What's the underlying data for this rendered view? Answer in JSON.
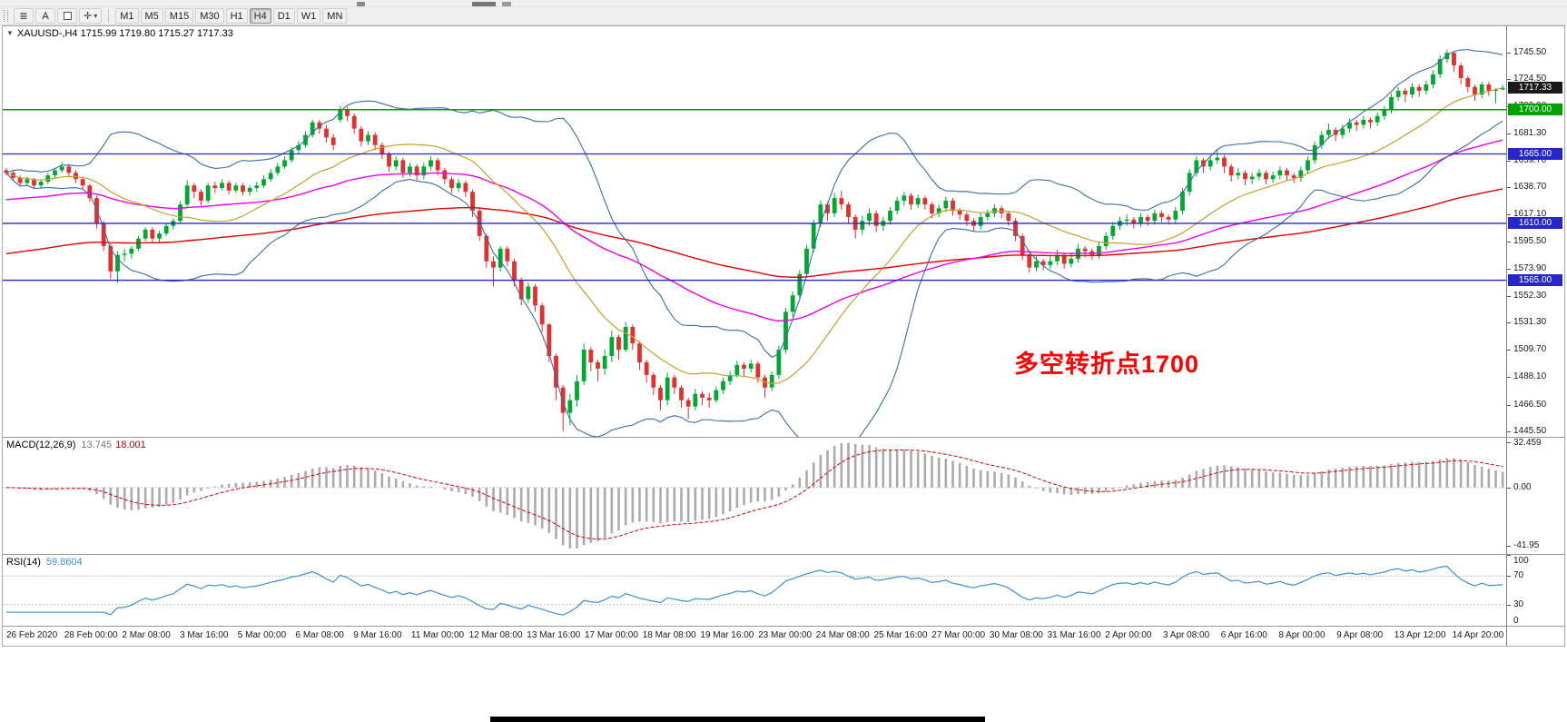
{
  "window": {
    "title": "XAUUSD-,H4 1715.99 1719.80 1715.27 1717.33",
    "icons": {
      "collapse": "▼",
      "caret": "▾",
      "crosshair": "✛",
      "grid": "≣"
    },
    "toolbar": {
      "cursor_label": "A",
      "timeframes": [
        "M1",
        "M5",
        "M15",
        "M30",
        "H1",
        "H4",
        "D1",
        "W1",
        "MN"
      ],
      "active_timeframe": "H4"
    }
  },
  "chart_data": {
    "type": "candlestick",
    "symbol": "XAUUSD-",
    "timeframe": "H4",
    "ohlc_display": {
      "open": "1715.99",
      "high": "1719.80",
      "low": "1715.27",
      "close": "1717.33"
    },
    "price_axis": {
      "ylim": [
        1441,
        1766
      ],
      "ticks": [
        1745.5,
        1724.5,
        1702.9,
        1681.3,
        1659.7,
        1638.7,
        1617.1,
        1595.5,
        1573.9,
        1552.3,
        1531.3,
        1509.7,
        1488.1,
        1466.5,
        1445.5
      ]
    },
    "time_axis_labels": [
      "26 Feb 2020",
      "28 Feb 00:00",
      "2 Mar 08:00",
      "3 Mar 16:00",
      "5 Mar 00:00",
      "6 Mar 08:00",
      "9 Mar 16:00",
      "11 Mar 00:00",
      "12 Mar 08:00",
      "13 Mar 16:00",
      "17 Mar 00:00",
      "18 Mar 08:00",
      "19 Mar 16:00",
      "23 Mar 00:00",
      "24 Mar 08:00",
      "25 Mar 16:00",
      "27 Mar 00:00",
      "30 Mar 08:00",
      "31 Mar 16:00",
      "2 Apr 00:00",
      "3 Apr 08:00",
      "6 Apr 16:00",
      "8 Apr 00:00",
      "9 Apr 08:00",
      "13 Apr 12:00",
      "14 Apr 20:00"
    ],
    "candle_colors": {
      "up": "#00A832",
      "down": "#E03030"
    },
    "candles": [
      [
        1652,
        1654,
        1648,
        1650
      ],
      [
        1650,
        1652,
        1644,
        1646
      ],
      [
        1646,
        1648,
        1640,
        1642
      ],
      [
        1642,
        1647,
        1640,
        1645
      ],
      [
        1645,
        1646,
        1637,
        1640
      ],
      [
        1640,
        1645,
        1638,
        1643
      ],
      [
        1643,
        1650,
        1641,
        1648
      ],
      [
        1648,
        1654,
        1646,
        1652
      ],
      [
        1652,
        1658,
        1650,
        1655
      ],
      [
        1655,
        1657,
        1647,
        1650
      ],
      [
        1650,
        1652,
        1642,
        1645
      ],
      [
        1645,
        1647,
        1637,
        1640
      ],
      [
        1640,
        1641,
        1627,
        1630
      ],
      [
        1630,
        1632,
        1606,
        1610
      ],
      [
        1610,
        1612,
        1588,
        1592
      ],
      [
        1592,
        1594,
        1566,
        1572
      ],
      [
        1572,
        1588,
        1563,
        1585
      ],
      [
        1585,
        1590,
        1580,
        1586
      ],
      [
        1586,
        1592,
        1582,
        1590
      ],
      [
        1590,
        1600,
        1588,
        1598
      ],
      [
        1598,
        1607,
        1596,
        1605
      ],
      [
        1605,
        1607,
        1594,
        1598
      ],
      [
        1598,
        1604,
        1595,
        1602
      ],
      [
        1602,
        1610,
        1600,
        1608
      ],
      [
        1608,
        1614,
        1605,
        1612
      ],
      [
        1612,
        1628,
        1610,
        1625
      ],
      [
        1625,
        1644,
        1623,
        1640
      ],
      [
        1640,
        1642,
        1630,
        1635
      ],
      [
        1635,
        1637,
        1624,
        1628
      ],
      [
        1628,
        1642,
        1626,
        1640
      ],
      [
        1640,
        1643,
        1634,
        1638
      ],
      [
        1638,
        1645,
        1636,
        1642
      ],
      [
        1642,
        1644,
        1633,
        1636
      ],
      [
        1636,
        1642,
        1634,
        1640
      ],
      [
        1640,
        1642,
        1632,
        1635
      ],
      [
        1635,
        1640,
        1632,
        1638
      ],
      [
        1638,
        1643,
        1635,
        1640
      ],
      [
        1640,
        1648,
        1638,
        1645
      ],
      [
        1645,
        1653,
        1643,
        1650
      ],
      [
        1650,
        1658,
        1648,
        1655
      ],
      [
        1655,
        1663,
        1653,
        1660
      ],
      [
        1660,
        1670,
        1658,
        1668
      ],
      [
        1668,
        1675,
        1665,
        1672
      ],
      [
        1672,
        1683,
        1670,
        1680
      ],
      [
        1680,
        1692,
        1678,
        1690
      ],
      [
        1690,
        1692,
        1681,
        1685
      ],
      [
        1685,
        1688,
        1674,
        1678
      ],
      [
        1678,
        1681,
        1668,
        1672
      ],
      [
        1692,
        1703,
        1690,
        1700
      ],
      [
        1700,
        1702,
        1691,
        1695
      ],
      [
        1695,
        1697,
        1681,
        1685
      ],
      [
        1685,
        1687,
        1671,
        1675
      ],
      [
        1675,
        1683,
        1672,
        1680
      ],
      [
        1680,
        1682,
        1668,
        1672
      ],
      [
        1672,
        1674,
        1661,
        1665
      ],
      [
        1665,
        1667,
        1651,
        1655
      ],
      [
        1655,
        1663,
        1652,
        1660
      ],
      [
        1660,
        1662,
        1646,
        1650
      ],
      [
        1650,
        1658,
        1647,
        1655
      ],
      [
        1655,
        1657,
        1644,
        1648
      ],
      [
        1648,
        1658,
        1645,
        1655
      ],
      [
        1655,
        1663,
        1652,
        1660
      ],
      [
        1660,
        1662,
        1648,
        1652
      ],
      [
        1652,
        1654,
        1641,
        1645
      ],
      [
        1645,
        1647,
        1634,
        1638
      ],
      [
        1638,
        1645,
        1635,
        1642
      ],
      [
        1642,
        1644,
        1631,
        1635
      ],
      [
        1635,
        1637,
        1615,
        1620
      ],
      [
        1620,
        1622,
        1596,
        1600
      ],
      [
        1600,
        1602,
        1575,
        1580
      ],
      [
        1580,
        1584,
        1560,
        1575
      ],
      [
        1575,
        1592,
        1572,
        1590
      ],
      [
        1590,
        1592,
        1576,
        1580
      ],
      [
        1580,
        1582,
        1560,
        1565
      ],
      [
        1565,
        1567,
        1545,
        1550
      ],
      [
        1550,
        1563,
        1547,
        1560
      ],
      [
        1560,
        1562,
        1540,
        1545
      ],
      [
        1545,
        1547,
        1524,
        1530
      ],
      [
        1530,
        1531,
        1500,
        1505
      ],
      [
        1505,
        1507,
        1470,
        1480
      ],
      [
        1480,
        1482,
        1445.5,
        1460
      ],
      [
        1460,
        1475,
        1450,
        1470
      ],
      [
        1470,
        1490,
        1465,
        1485
      ],
      [
        1485,
        1515,
        1482,
        1510
      ],
      [
        1510,
        1512,
        1493,
        1500
      ],
      [
        1500,
        1502,
        1485,
        1495
      ],
      [
        1495,
        1510,
        1490,
        1505
      ],
      [
        1505,
        1525,
        1500,
        1520
      ],
      [
        1520,
        1522,
        1502,
        1510
      ],
      [
        1510,
        1532,
        1508,
        1528
      ],
      [
        1528,
        1530,
        1510,
        1515
      ],
      [
        1515,
        1517,
        1494,
        1500
      ],
      [
        1500,
        1502,
        1484,
        1490
      ],
      [
        1490,
        1492,
        1474,
        1480
      ],
      [
        1480,
        1482,
        1462,
        1470
      ],
      [
        1470,
        1492,
        1466,
        1488
      ],
      [
        1488,
        1490,
        1475,
        1480
      ],
      [
        1480,
        1482,
        1464,
        1470
      ],
      [
        1470,
        1472,
        1455,
        1465
      ],
      [
        1465,
        1479,
        1462,
        1475
      ],
      [
        1475,
        1477,
        1466,
        1472
      ],
      [
        1472,
        1476,
        1464,
        1470
      ],
      [
        1470,
        1481,
        1468,
        1478
      ],
      [
        1478,
        1488,
        1475,
        1485
      ],
      [
        1485,
        1493,
        1482,
        1490
      ],
      [
        1490,
        1501,
        1488,
        1498
      ],
      [
        1498,
        1500,
        1489,
        1495
      ],
      [
        1495,
        1502,
        1492,
        1499
      ],
      [
        1499,
        1501,
        1484,
        1488
      ],
      [
        1488,
        1490,
        1472,
        1480
      ],
      [
        1480,
        1493,
        1477,
        1490
      ],
      [
        1490,
        1513,
        1487,
        1510
      ],
      [
        1510,
        1543,
        1507,
        1540
      ],
      [
        1540,
        1556,
        1536,
        1553
      ],
      [
        1553,
        1573,
        1550,
        1570
      ],
      [
        1570,
        1593,
        1567,
        1590
      ],
      [
        1590,
        1613,
        1587,
        1610
      ],
      [
        1610,
        1628,
        1607,
        1625
      ],
      [
        1625,
        1627,
        1612,
        1618
      ],
      [
        1618,
        1634,
        1615,
        1630
      ],
      [
        1630,
        1636,
        1621,
        1625
      ],
      [
        1625,
        1627,
        1610,
        1615
      ],
      [
        1615,
        1617,
        1598,
        1605
      ],
      [
        1605,
        1616,
        1601,
        1612
      ],
      [
        1612,
        1622,
        1608,
        1618
      ],
      [
        1618,
        1620,
        1603,
        1608
      ],
      [
        1608,
        1615,
        1604,
        1612
      ],
      [
        1612,
        1623,
        1609,
        1620
      ],
      [
        1620,
        1631,
        1617,
        1628
      ],
      [
        1628,
        1635,
        1624,
        1632
      ],
      [
        1632,
        1634,
        1621,
        1625
      ],
      [
        1625,
        1633,
        1622,
        1630
      ],
      [
        1630,
        1632,
        1621,
        1625
      ],
      [
        1625,
        1627,
        1614,
        1618
      ],
      [
        1618,
        1625,
        1615,
        1622
      ],
      [
        1622,
        1631,
        1619,
        1628
      ],
      [
        1628,
        1630,
        1616,
        1620
      ],
      [
        1620,
        1622,
        1613,
        1617
      ],
      [
        1617,
        1619,
        1608,
        1612
      ],
      [
        1612,
        1614,
        1604,
        1608
      ],
      [
        1608,
        1618,
        1605,
        1615
      ],
      [
        1615,
        1621,
        1612,
        1618
      ],
      [
        1618,
        1625,
        1615,
        1622
      ],
      [
        1622,
        1624,
        1614,
        1618
      ],
      [
        1618,
        1620,
        1608,
        1612
      ],
      [
        1612,
        1614,
        1596,
        1600
      ],
      [
        1600,
        1602,
        1581,
        1585
      ],
      [
        1585,
        1587,
        1571,
        1575
      ],
      [
        1575,
        1584,
        1572,
        1580
      ],
      [
        1580,
        1582,
        1573,
        1577
      ],
      [
        1577,
        1584,
        1574,
        1580
      ],
      [
        1580,
        1589,
        1577,
        1585
      ],
      [
        1585,
        1587,
        1574,
        1578
      ],
      [
        1578,
        1586,
        1575,
        1582
      ],
      [
        1582,
        1594,
        1579,
        1590
      ],
      [
        1590,
        1592,
        1583,
        1588
      ],
      [
        1588,
        1590,
        1581,
        1585
      ],
      [
        1585,
        1595,
        1582,
        1592
      ],
      [
        1592,
        1603,
        1589,
        1600
      ],
      [
        1600,
        1611,
        1597,
        1608
      ],
      [
        1608,
        1615,
        1605,
        1612
      ],
      [
        1612,
        1617,
        1608,
        1613
      ],
      [
        1613,
        1615,
        1606,
        1610
      ],
      [
        1610,
        1618,
        1607,
        1615
      ],
      [
        1615,
        1617,
        1608,
        1612
      ],
      [
        1612,
        1621,
        1609,
        1618
      ],
      [
        1618,
        1620,
        1611,
        1615
      ],
      [
        1615,
        1617,
        1609,
        1613
      ],
      [
        1613,
        1623,
        1610,
        1620
      ],
      [
        1620,
        1638,
        1617,
        1635
      ],
      [
        1635,
        1653,
        1632,
        1650
      ],
      [
        1650,
        1663,
        1647,
        1660
      ],
      [
        1660,
        1662,
        1650,
        1655
      ],
      [
        1655,
        1664,
        1652,
        1660
      ],
      [
        1660,
        1668,
        1657,
        1662
      ],
      [
        1662,
        1664,
        1650,
        1655
      ],
      [
        1655,
        1657,
        1643,
        1648
      ],
      [
        1648,
        1654,
        1645,
        1650
      ],
      [
        1650,
        1652,
        1640,
        1645
      ],
      [
        1645,
        1650,
        1641,
        1647
      ],
      [
        1647,
        1653,
        1644,
        1650
      ],
      [
        1650,
        1652,
        1641,
        1645
      ],
      [
        1645,
        1651,
        1642,
        1648
      ],
      [
        1648,
        1655,
        1645,
        1652
      ],
      [
        1652,
        1654,
        1644,
        1648
      ],
      [
        1648,
        1650,
        1642,
        1646
      ],
      [
        1646,
        1655,
        1643,
        1652
      ],
      [
        1652,
        1663,
        1649,
        1660
      ],
      [
        1660,
        1675,
        1657,
        1672
      ],
      [
        1672,
        1683,
        1669,
        1680
      ],
      [
        1680,
        1689,
        1677,
        1684
      ],
      [
        1684,
        1686,
        1675,
        1680
      ],
      [
        1680,
        1688,
        1677,
        1685
      ],
      [
        1685,
        1693,
        1682,
        1690
      ],
      [
        1690,
        1692,
        1683,
        1688
      ],
      [
        1688,
        1695,
        1685,
        1692
      ],
      [
        1692,
        1694,
        1685,
        1690
      ],
      [
        1690,
        1698,
        1687,
        1695
      ],
      [
        1695,
        1703,
        1692,
        1700
      ],
      [
        1700,
        1713,
        1697,
        1710
      ],
      [
        1710,
        1718,
        1707,
        1715
      ],
      [
        1715,
        1717,
        1706,
        1712
      ],
      [
        1712,
        1721,
        1709,
        1718
      ],
      [
        1718,
        1720,
        1710,
        1715
      ],
      [
        1715,
        1723,
        1712,
        1720
      ],
      [
        1720,
        1731,
        1717,
        1728
      ],
      [
        1728,
        1743,
        1725,
        1740
      ],
      [
        1740,
        1747.5,
        1737,
        1745
      ],
      [
        1745,
        1746,
        1730,
        1735
      ],
      [
        1735,
        1737,
        1720,
        1725
      ],
      [
        1725,
        1727,
        1714,
        1718
      ],
      [
        1718,
        1720,
        1707,
        1712
      ],
      [
        1712,
        1722,
        1709,
        1720
      ],
      [
        1720,
        1722,
        1711,
        1715
      ],
      [
        1715,
        1717,
        1705,
        1716
      ],
      [
        1715.99,
        1719.8,
        1715.27,
        1717.33
      ]
    ],
    "overlays": {
      "bollinger": {
        "period": 20,
        "deviation": 2,
        "color": "#3A6EA5"
      },
      "ma_fast": {
        "period": 20,
        "color": "#C8A02C"
      },
      "ma_medium": {
        "period": 60,
        "seed": 1628,
        "color": "#EE00EE"
      },
      "ma_slow": {
        "period": 144,
        "seed": 1585,
        "color": "#E00000"
      }
    },
    "hlines": [
      {
        "value": 1700,
        "color": "#00A000",
        "badge": "1700.00",
        "width": 1.5
      },
      {
        "value": 1665,
        "color": "#2626CC",
        "badge": "1665.00",
        "width": 1.3
      },
      {
        "value": 1610,
        "color": "#2626CC",
        "badge": "1610.00",
        "width": 1.3
      },
      {
        "value": 1565,
        "color": "#2626CC",
        "badge": "1565.00",
        "width": 1.3
      }
    ],
    "current_price": {
      "value": 1717.33,
      "badge": "1717.33",
      "badge_color": "#1a1a1a"
    },
    "annotation": {
      "text": "多空转折点1700",
      "color": "#FF0000"
    },
    "macd": {
      "label": "MACD(12,26,9)",
      "value_main": "13.745",
      "value_signal": "18.001",
      "ylim": [
        -48,
        36
      ],
      "ticks": [
        {
          "v": 32.459,
          "label": "32.459"
        },
        {
          "v": 0,
          "label": "0.00"
        },
        {
          "v": -41.95,
          "label": "-41.95"
        }
      ],
      "histogram_color": "#ABABAB",
      "signal_color": "#D40000"
    },
    "rsi": {
      "label": "RSI(14)",
      "value": "59.8604",
      "ylim": [
        0,
        100
      ],
      "levels": [
        70,
        30
      ],
      "ticks": [
        {
          "v": 100,
          "label": "100"
        },
        {
          "v": 70,
          "label": "70"
        },
        {
          "v": 30,
          "label": "30"
        },
        {
          "v": 0,
          "label": "0"
        }
      ],
      "line_color": "#3E8ED8"
    }
  }
}
